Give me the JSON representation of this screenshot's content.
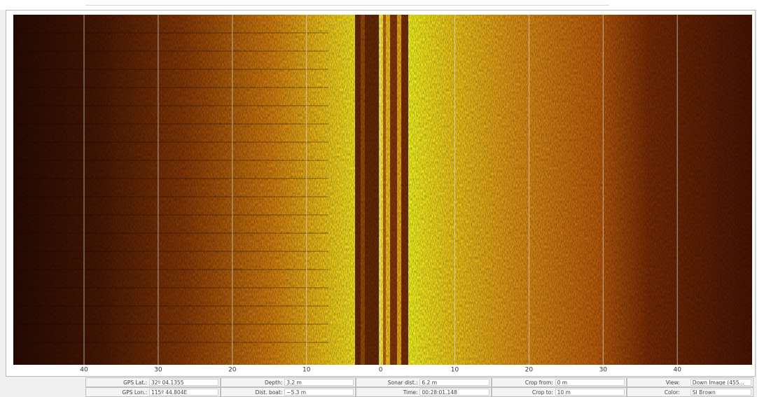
{
  "scale": {
    "ticks": [
      40,
      30,
      20,
      10,
      0,
      10,
      20,
      30,
      40
    ]
  },
  "status": {
    "rows": [
      [
        {
          "label": "GPS Lat.:",
          "value": "32º 04.1355"
        },
        {
          "label": "Depth:",
          "value": "3.2 m"
        },
        {
          "label": "Sonar dist.:",
          "value": "6.2 m"
        },
        {
          "label": "Crop from:",
          "value": "0 m"
        },
        {
          "label": "View:",
          "value": "Down Image (455..."
        }
      ],
      [
        {
          "label": "GPS Lon.:",
          "value": "115º 44.804E"
        },
        {
          "label": "Dist. boat:",
          "value": "~5.3 m"
        },
        {
          "label": "Time:",
          "value": "00:28:01.148"
        },
        {
          "label": "Crop to:",
          "value": "10 m"
        },
        {
          "label": "Color:",
          "value": "SI Brown"
        }
      ]
    ]
  }
}
